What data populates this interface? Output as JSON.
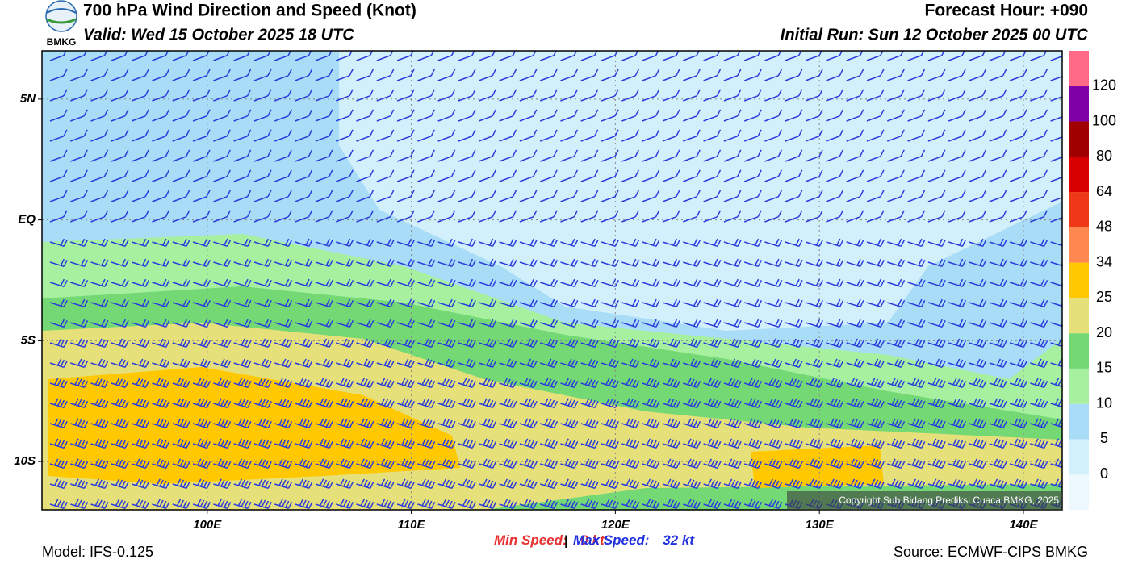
{
  "header": {
    "logo_text": "BMKG",
    "title": "700 hPa Wind Direction and Speed (Knot)",
    "valid": "Valid: Wed 15 October 2025 18 UTC",
    "forecast_hour": "Forecast Hour: +090",
    "initial_run": "Initial Run: Sun 12 October 2025 00 UTC"
  },
  "map": {
    "lonlim": [
      91.9,
      141.9
    ],
    "latlim": [
      -12,
      7
    ],
    "lonticks": [
      {
        "value": 100,
        "label": "100E"
      },
      {
        "value": 110,
        "label": "110E"
      },
      {
        "value": 120,
        "label": "120E"
      },
      {
        "value": 130,
        "label": "130E"
      },
      {
        "value": 140,
        "label": "140E"
      }
    ],
    "latticks": [
      {
        "value": 5,
        "label": "5N"
      },
      {
        "value": 0,
        "label": "EQ"
      },
      {
        "value": -5,
        "label": "5S"
      },
      {
        "value": -10,
        "label": "10S"
      }
    ],
    "copyright": "Copyright Sub Bidang Prediksi Cuaca BMKG, 2025"
  },
  "colorbar": {
    "levels": [
      0,
      5,
      10,
      15,
      20,
      25,
      34,
      48,
      64,
      80,
      100,
      120
    ],
    "colors": [
      "#eef8ff",
      "#d2f0fc",
      "#a9dcf7",
      "#a6f0a0",
      "#74d874",
      "#e6e07a",
      "#ffc800",
      "#ff8850",
      "#ee3818",
      "#d80000",
      "#a00000",
      "#8000a8",
      "#ff6a88"
    ]
  },
  "footer": {
    "min_speed_label": "Min Speed:",
    "min_speed": 0,
    "max_speed_label": "Max Speed:",
    "max_speed": 32,
    "unit": "kt",
    "separator": "|",
    "model": "Model: IFS-0.125",
    "source": "Source: ECMWF-CIPS BMKG"
  }
}
